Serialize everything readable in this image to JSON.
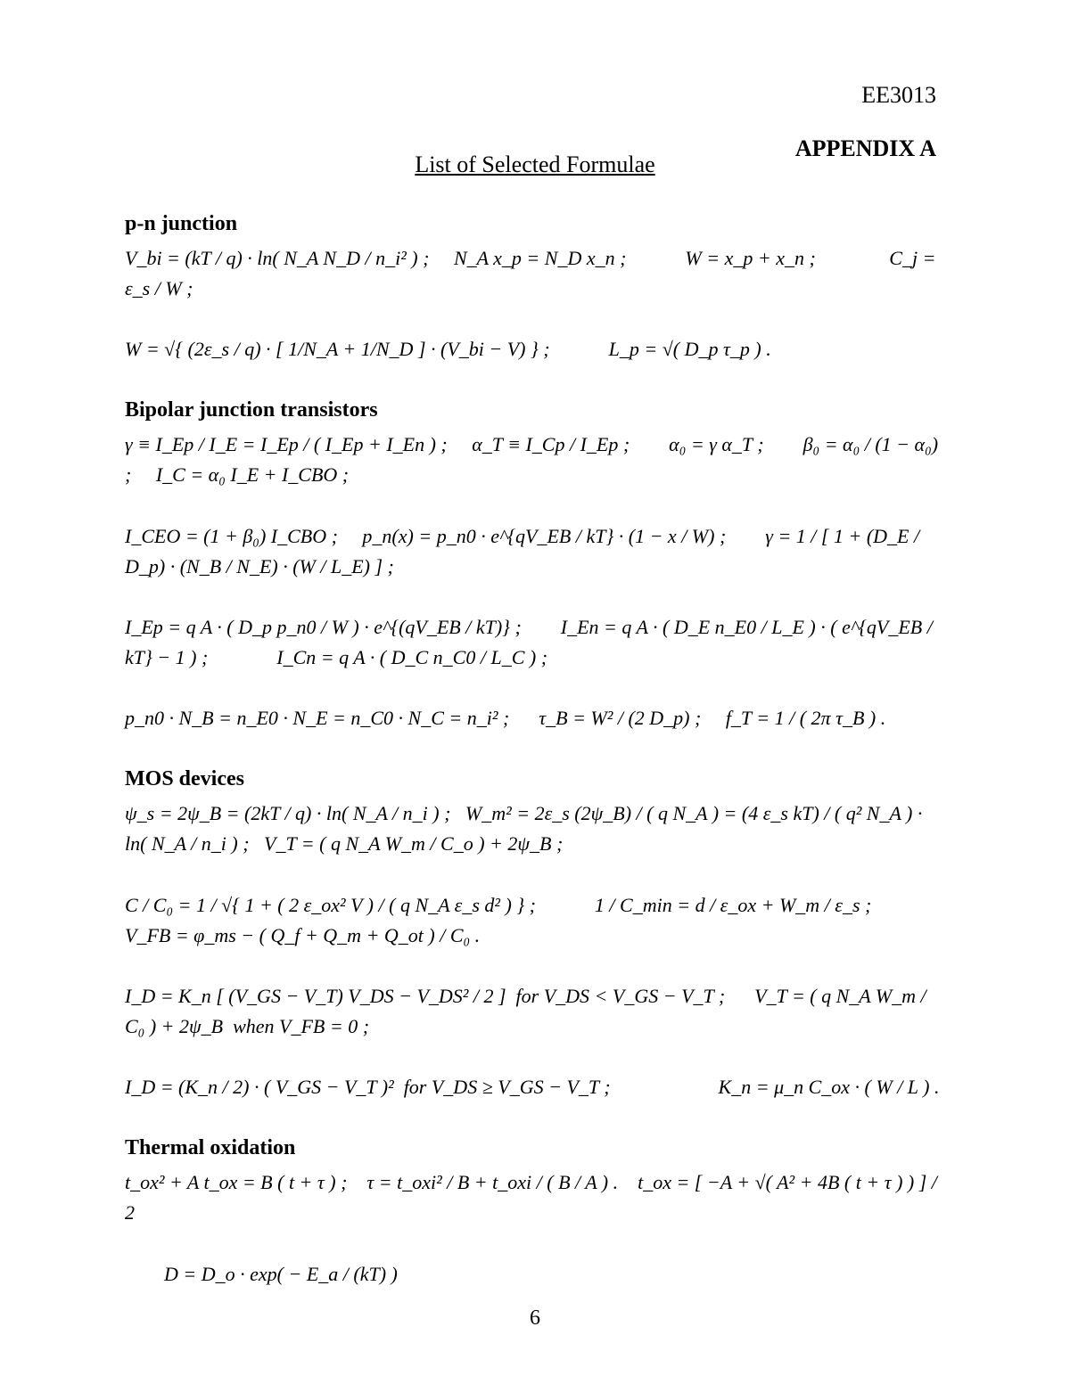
{
  "course_code": "EE3013",
  "appendix_label": "APPENDIX A",
  "page_title": "List of Selected Formulae",
  "page_number": "6",
  "sections": {
    "pn": {
      "title": "p-n junction",
      "body": "V_bi = (kT / q) · ln( N_A N_D / n_i² ) ;     N_A x_p = N_D x_n ;            W = x_p + x_n ;               C_j = ε_s / W ;\n\nW = √{ (2ε_s / q) · [ 1/N_A + 1/N_D ] · (V_bi − V) } ;            L_p = √( D_p τ_p ) ."
    },
    "bjt": {
      "title": "Bipolar junction transistors",
      "body": "γ ≡ I_Ep / I_E = I_Ep / ( I_Ep + I_En ) ;     α_T ≡ I_Cp / I_Ep ;        α₀ = γ α_T ;        β₀ = α₀ / (1 − α₀) ;     I_C = α₀ I_E + I_CBO ;\n\nI_CEO = (1 + β₀) I_CBO ;     p_n(x) = p_n0 · e^{qV_EB / kT} · (1 − x / W) ;        γ = 1 / [ 1 + (D_E / D_p) · (N_B / N_E) · (W / L_E) ] ;\n\nI_Ep = q A · ( D_p p_n0 / W ) · e^{(qV_EB / kT)} ;        I_En = q A · ( D_E n_E0 / L_E ) · ( e^{qV_EB / kT} − 1 ) ;              I_Cn = q A · ( D_C n_C0 / L_C ) ;\n\np_n0 · N_B = n_E0 · N_E = n_C0 · N_C = n_i² ;      τ_B = W² / (2 D_p) ;     f_T = 1 / ( 2π τ_B ) ."
    },
    "mos": {
      "title": "MOS devices",
      "body": "ψ_s = 2ψ_B = (2kT / q) · ln( N_A / n_i ) ;   W_m² = 2ε_s (2ψ_B) / ( q N_A ) = (4 ε_s kT) / ( q² N_A ) · ln( N_A / n_i ) ;   V_T = ( q N_A W_m / C_o ) + 2ψ_B ;\n\nC / C₀ = 1 / √{ 1 + ( 2 ε_ox² V ) / ( q N_A ε_s d² ) } ;            1 / C_min = d / ε_ox + W_m / ε_s ;        V_FB = φ_ms − ( Q_f + Q_m + Q_ot ) / C₀ .\n\nI_D = K_n [ (V_GS − V_T) V_DS − V_DS² / 2 ]  for V_DS < V_GS − V_T ;      V_T = ( q N_A W_m / C₀ ) + 2ψ_B  when V_FB = 0 ;\n\nI_D = (K_n / 2) · ( V_GS − V_T )²  for V_DS ≥ V_GS − V_T ;                      K_n = μ_n C_ox · ( W / L ) ."
    },
    "thermal": {
      "title": "Thermal oxidation",
      "body": "t_ox² + A t_ox = B ( t + τ ) ;    τ = t_oxi² / B + t_oxi / ( B / A ) .    t_ox = [ −A + √( A² + 4B ( t + τ ) ) ] / 2\n\n        D = D_o · exp( − E_a / (kT) )"
    }
  }
}
